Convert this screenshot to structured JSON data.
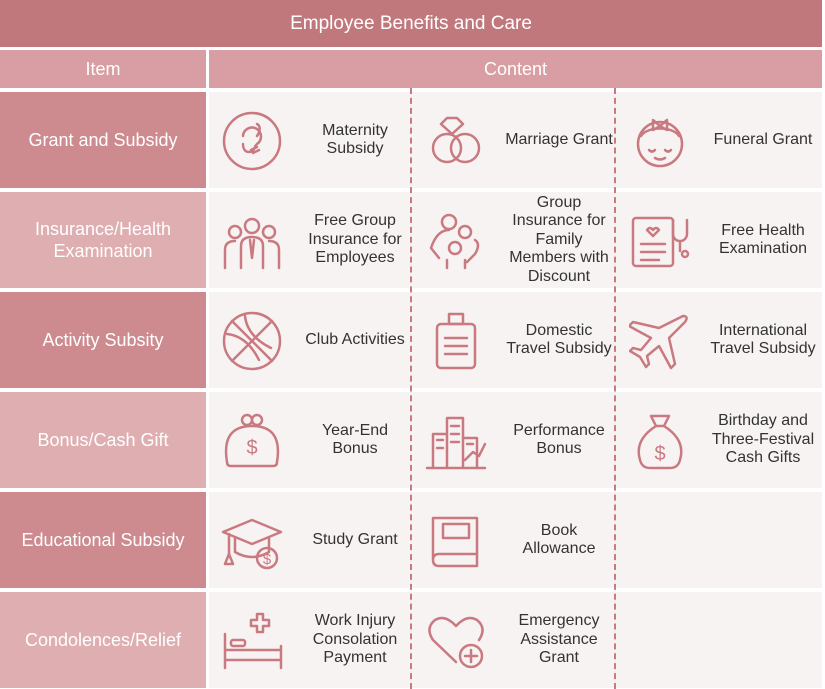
{
  "title": "Employee Benefits and Care",
  "header": {
    "item": "Item",
    "content": "Content"
  },
  "colors": {
    "title_bg": "#c0787c",
    "header_bg": "#d99ea3",
    "item_dark": "#cd8a8f",
    "item_light": "#dfaeb1",
    "content_bg": "#f8f3f3",
    "icon": "#c97a80"
  },
  "rows": [
    {
      "item": "Grant and Subsidy",
      "benefits": [
        {
          "icon": "fetus-icon",
          "label": "Maternity Subsidy"
        },
        {
          "icon": "wedding-rings-icon",
          "label": "Marriage Grant"
        },
        {
          "icon": "mourning-girl-icon",
          "label": "Funeral Grant"
        }
      ]
    },
    {
      "item": "Insurance/Health Examination",
      "benefits": [
        {
          "icon": "employees-group-icon",
          "label": "Free Group Insurance for Employees"
        },
        {
          "icon": "family-icon",
          "label": "Group Insurance for Family Members with Discount"
        },
        {
          "icon": "health-report-stethoscope-icon",
          "label": "Free Health Examination"
        }
      ]
    },
    {
      "item": "Activity Subsity",
      "benefits": [
        {
          "icon": "basketball-icon",
          "label": "Club Activities"
        },
        {
          "icon": "suitcase-icon",
          "label": "Domestic Travel Subsidy"
        },
        {
          "icon": "airplane-icon",
          "label": "International Travel Subsidy"
        }
      ]
    },
    {
      "item": "Bonus/Cash Gift",
      "benefits": [
        {
          "icon": "coin-purse-icon",
          "label": "Year-End Bonus"
        },
        {
          "icon": "buildings-chart-icon",
          "label": "Performance Bonus"
        },
        {
          "icon": "money-bag-icon",
          "label": "Birthday and Three-Festival Cash Gifts"
        }
      ]
    },
    {
      "item": "Educational Subsidy",
      "benefits": [
        {
          "icon": "graduation-cap-dollar-icon",
          "label": "Study Grant"
        },
        {
          "icon": "book-icon",
          "label": "Book Allowance"
        }
      ]
    },
    {
      "item": "Condolences/Relief",
      "benefits": [
        {
          "icon": "hospital-bed-icon",
          "label": "Work Injury Consolation Payment"
        },
        {
          "icon": "heart-plus-icon",
          "label": "Emergency Assistance Grant"
        }
      ]
    }
  ]
}
